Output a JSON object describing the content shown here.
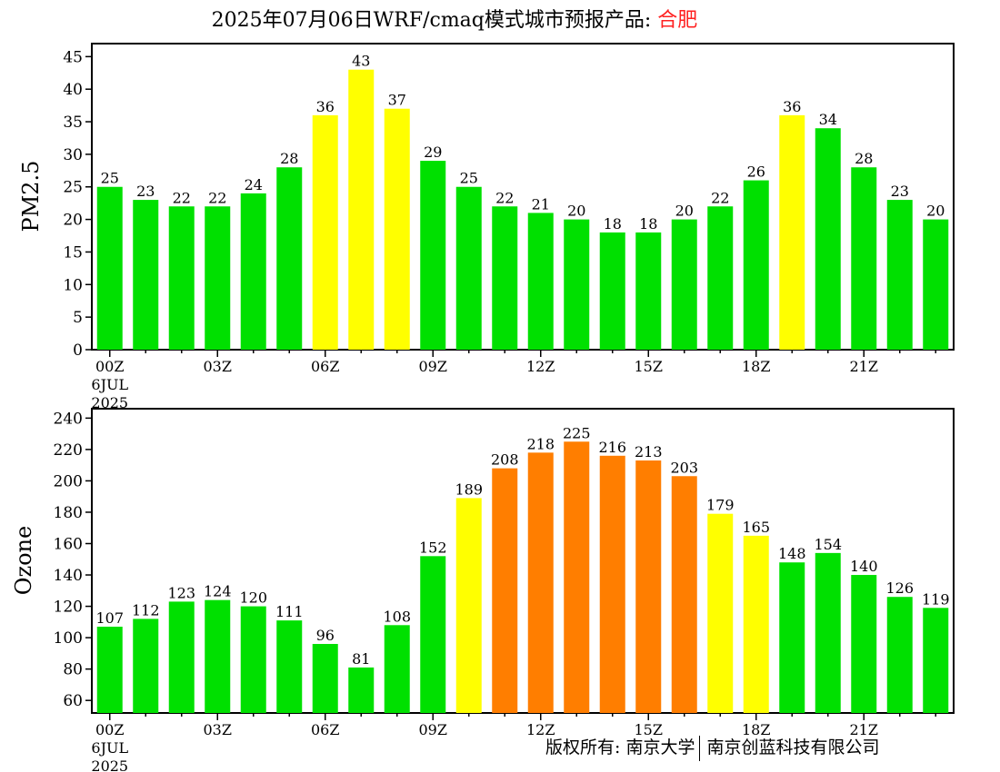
{
  "header": {
    "title": "2025年07月06日WRF/cmaq模式城市预报产品: ",
    "city": "合肥"
  },
  "footer": {
    "copyright": "版权所有: 南京大学",
    "company": "南京创蓝科技有限公司"
  },
  "colors": {
    "green": "#00e000",
    "yellow": "#ffff00",
    "orange": "#ff7e00",
    "title_city": "#ff2020"
  },
  "chart_data": [
    {
      "type": "bar",
      "ylabel": "PM2.5",
      "ylim": [
        0,
        47
      ],
      "yticks": [
        0,
        5,
        10,
        15,
        20,
        25,
        30,
        35,
        40,
        45
      ],
      "x": [
        "00Z",
        "01Z",
        "02Z",
        "03Z",
        "04Z",
        "05Z",
        "06Z",
        "07Z",
        "08Z",
        "09Z",
        "10Z",
        "11Z",
        "12Z",
        "13Z",
        "14Z",
        "15Z",
        "16Z",
        "17Z",
        "18Z",
        "19Z",
        "20Z",
        "21Z",
        "22Z",
        "23Z"
      ],
      "xtick_labels": [
        "00Z",
        "03Z",
        "06Z",
        "09Z",
        "12Z",
        "15Z",
        "18Z",
        "21Z"
      ],
      "date_labels": [
        "6JUL",
        "2025"
      ],
      "values": [
        25,
        23,
        22,
        22,
        24,
        28,
        36,
        43,
        37,
        29,
        25,
        22,
        21,
        20,
        18,
        18,
        20,
        22,
        26,
        36,
        34,
        28,
        23,
        20
      ],
      "bar_levels": [
        "green",
        "green",
        "green",
        "green",
        "green",
        "green",
        "yellow",
        "yellow",
        "yellow",
        "green",
        "green",
        "green",
        "green",
        "green",
        "green",
        "green",
        "green",
        "green",
        "green",
        "yellow",
        "green",
        "green",
        "green",
        "green"
      ]
    },
    {
      "type": "bar",
      "ylabel": "Ozone",
      "ylim": [
        52,
        246
      ],
      "yticks": [
        60,
        80,
        100,
        120,
        140,
        160,
        180,
        200,
        220,
        240
      ],
      "x": [
        "00Z",
        "01Z",
        "02Z",
        "03Z",
        "04Z",
        "05Z",
        "06Z",
        "07Z",
        "08Z",
        "09Z",
        "10Z",
        "11Z",
        "12Z",
        "13Z",
        "14Z",
        "15Z",
        "16Z",
        "17Z",
        "18Z",
        "19Z",
        "20Z",
        "21Z",
        "22Z",
        "23Z"
      ],
      "xtick_labels": [
        "00Z",
        "03Z",
        "06Z",
        "09Z",
        "12Z",
        "15Z",
        "18Z",
        "21Z"
      ],
      "date_labels": [
        "6JUL",
        "2025"
      ],
      "values": [
        107,
        112,
        123,
        124,
        120,
        111,
        96,
        81,
        108,
        152,
        189,
        208,
        218,
        225,
        216,
        213,
        203,
        179,
        165,
        148,
        154,
        140,
        126,
        119
      ],
      "bar_levels": [
        "green",
        "green",
        "green",
        "green",
        "green",
        "green",
        "green",
        "green",
        "green",
        "green",
        "yellow",
        "orange",
        "orange",
        "orange",
        "orange",
        "orange",
        "orange",
        "yellow",
        "yellow",
        "green",
        "green",
        "green",
        "green",
        "green"
      ]
    }
  ]
}
